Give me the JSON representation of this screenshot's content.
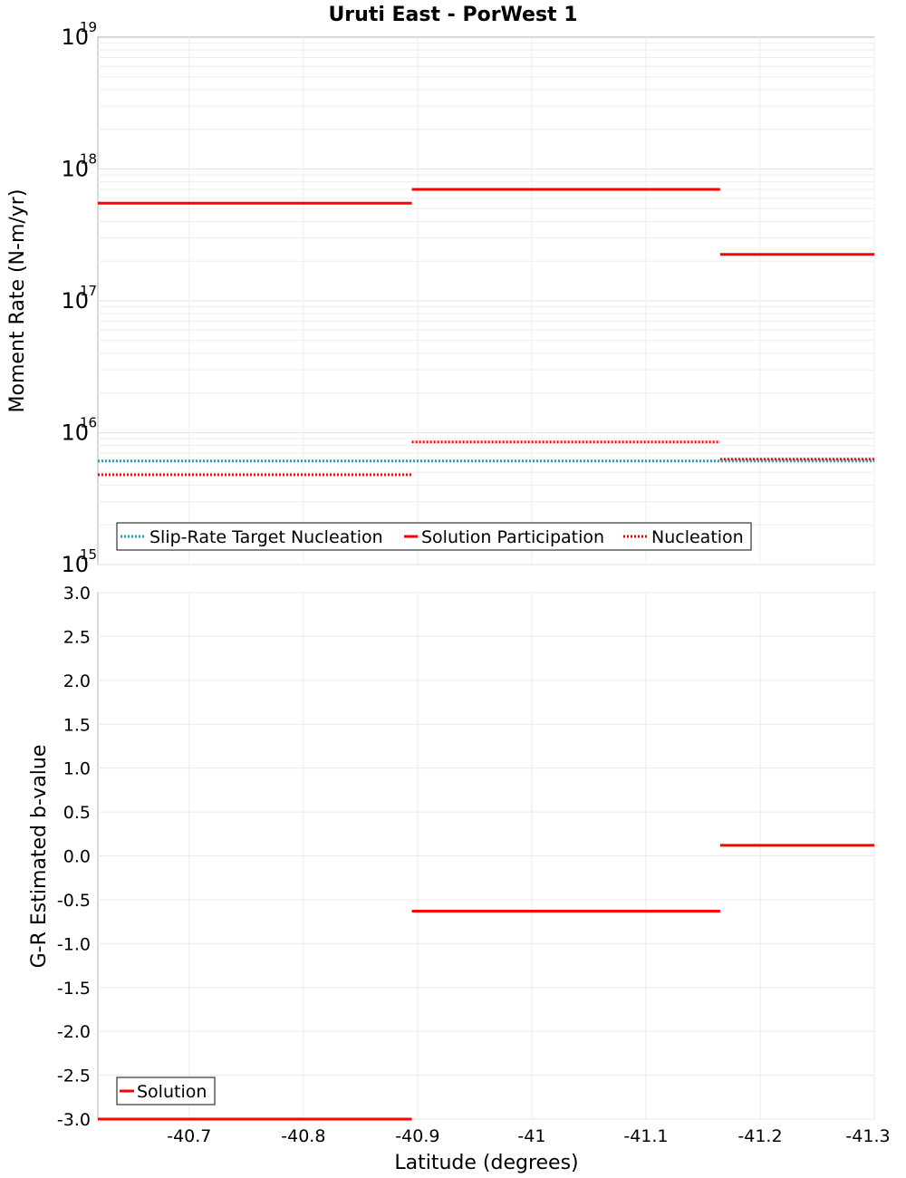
{
  "chart_data": [
    {
      "type": "line",
      "title": "Uruti East - PorWest 1",
      "xlabel": "",
      "ylabel": "Moment Rate (N-m/yr)",
      "yscale": "log",
      "ylim": [
        1000000000000000.0,
        1e+19
      ],
      "xlim": [
        -40.62,
        -41.3
      ],
      "x_ticks": [
        -40.7,
        -40.8,
        -40.9,
        -41,
        -41.1,
        -41.2,
        -41.3
      ],
      "y_ticks": [
        {
          "base": "10",
          "exp": "15"
        },
        {
          "base": "10",
          "exp": "16"
        },
        {
          "base": "10",
          "exp": "17"
        },
        {
          "base": "10",
          "exp": "18"
        },
        {
          "base": "10",
          "exp": "19"
        }
      ],
      "legend": {
        "position": "bottom-left",
        "entries": [
          "Slip-Rate Target Nucleation",
          "Solution Participation",
          "Nucleation"
        ]
      },
      "series": [
        {
          "name": "Slip-Rate Target Nucleation",
          "style": "dotted",
          "color": "#1aa7b5",
          "segments": [
            {
              "x0": -40.62,
              "x1": -41.3,
              "y": 6100000000000000.0
            }
          ]
        },
        {
          "name": "Solution Participation",
          "style": "solid",
          "color": "#ff0000",
          "segments": [
            {
              "x0": -40.62,
              "x1": -40.895,
              "y": 5.5e+17
            },
            {
              "x0": -40.895,
              "x1": -41.165,
              "y": 7e+17
            },
            {
              "x0": -41.165,
              "x1": -41.3,
              "y": 2.25e+17
            }
          ]
        },
        {
          "name": "Nucleation",
          "style": "dotted",
          "color": "#ff0000",
          "segments": [
            {
              "x0": -40.62,
              "x1": -40.895,
              "y": 4800000000000000.0
            },
            {
              "x0": -40.895,
              "x1": -41.165,
              "y": 8500000000000000.0
            },
            {
              "x0": -41.165,
              "x1": -41.3,
              "y": 6300000000000000.0
            }
          ]
        }
      ]
    },
    {
      "type": "line",
      "title": "",
      "xlabel": "Latitude (degrees)",
      "ylabel": "G-R Estimated b-value",
      "ylim": [
        -3.0,
        3.0
      ],
      "xlim": [
        -40.62,
        -41.3
      ],
      "x_ticks": [
        -40.7,
        -40.8,
        -40.9,
        -41,
        -41.1,
        -41.2,
        -41.3
      ],
      "x_tick_labels": [
        "-40.7",
        "-40.8",
        "-40.9",
        "-41",
        "-41.1",
        "-41.2",
        "-41.3"
      ],
      "y_ticks": [
        3.0,
        2.5,
        2.0,
        1.5,
        1.0,
        0.5,
        0.0,
        -0.5,
        -1.0,
        -1.5,
        -2.0,
        -2.5,
        -3.0
      ],
      "y_tick_labels": [
        "3.0",
        "2.5",
        "2.0",
        "1.5",
        "1.0",
        "0.5",
        "0.0",
        "-0.5",
        "-1.0",
        "-1.5",
        "-2.0",
        "-2.5",
        "-3.0"
      ],
      "legend": {
        "position": "bottom-left",
        "entries": [
          "Solution"
        ]
      },
      "series": [
        {
          "name": "Solution",
          "style": "solid",
          "color": "#ff0000",
          "segments": [
            {
              "x0": -40.62,
              "x1": -40.895,
              "y": -3.0
            },
            {
              "x0": -40.895,
              "x1": -41.165,
              "y": -0.63
            },
            {
              "x0": -41.165,
              "x1": -41.3,
              "y": 0.12
            }
          ]
        }
      ]
    }
  ]
}
